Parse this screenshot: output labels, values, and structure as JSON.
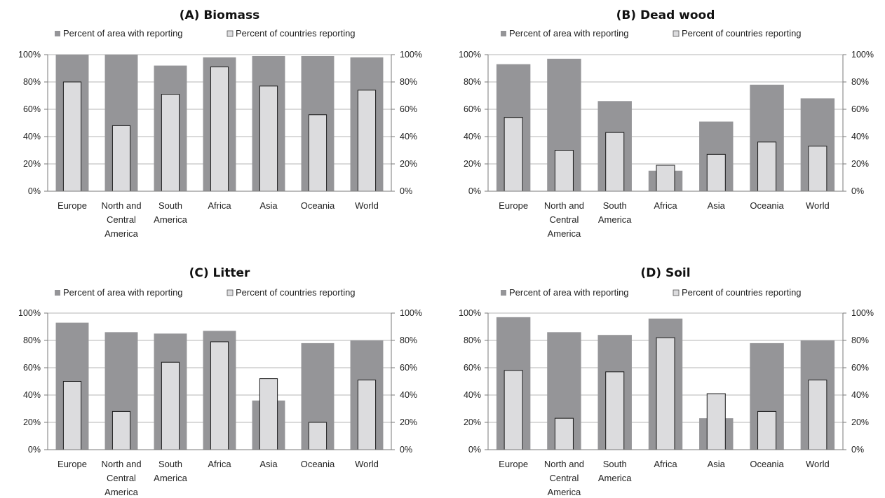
{
  "colors": {
    "area": "#959598",
    "countries": "#dcdcde",
    "countries_stroke": "#1a1a1a",
    "grid": "#b5b5b5",
    "axis": "#7a7a7a"
  },
  "chart_data": [
    {
      "type": "bar",
      "title": "(A) Biomass",
      "categories": [
        "Europe",
        "North and Central America",
        "South America",
        "Africa",
        "Asia",
        "Oceania",
        "World"
      ],
      "series": [
        {
          "name": "Percent of area with reporting",
          "values": [
            100,
            100,
            92,
            98,
            99,
            99,
            98
          ]
        },
        {
          "name": "Percent of countries reporting",
          "values": [
            80,
            48,
            71,
            91,
            77,
            56,
            74
          ]
        }
      ],
      "ylim": [
        0,
        100
      ],
      "y_ticks": [
        "0%",
        "20%",
        "40%",
        "60%",
        "80%",
        "100%"
      ],
      "y2_ticks": [
        "0%",
        "20%",
        "40%",
        "60%",
        "80%",
        "100%"
      ],
      "grid": true,
      "legend": "top"
    },
    {
      "type": "bar",
      "title": "(B) Dead wood",
      "categories": [
        "Europe",
        "North and Central America",
        "South America",
        "Africa",
        "Asia",
        "Oceania",
        "World"
      ],
      "series": [
        {
          "name": "Percent of area with reporting",
          "values": [
            93,
            97,
            66,
            15,
            51,
            78,
            68
          ]
        },
        {
          "name": "Percent of countries reporting",
          "values": [
            54,
            30,
            43,
            19,
            27,
            36,
            33
          ]
        }
      ],
      "ylim": [
        0,
        100
      ],
      "y_ticks": [
        "0%",
        "20%",
        "40%",
        "60%",
        "80%",
        "100%"
      ],
      "y2_ticks": [
        "0%",
        "20%",
        "40%",
        "60%",
        "80%",
        "100%"
      ],
      "grid": true,
      "legend": "top"
    },
    {
      "type": "bar",
      "title": "(C) Litter",
      "categories": [
        "Europe",
        "North and Central America",
        "South America",
        "Africa",
        "Asia",
        "Oceania",
        "World"
      ],
      "series": [
        {
          "name": "Percent of area with reporting",
          "values": [
            93,
            86,
            85,
            87,
            36,
            78,
            80
          ]
        },
        {
          "name": "Percent of countries reporting",
          "values": [
            50,
            28,
            64,
            79,
            52,
            20,
            51
          ]
        }
      ],
      "ylim": [
        0,
        100
      ],
      "y_ticks": [
        "0%",
        "20%",
        "40%",
        "60%",
        "80%",
        "100%"
      ],
      "y2_ticks": [
        "0%",
        "20%",
        "40%",
        "60%",
        "80%",
        "100%"
      ],
      "grid": true,
      "legend": "top"
    },
    {
      "type": "bar",
      "title": "(D) Soil",
      "categories": [
        "Europe",
        "North and Central America",
        "South America",
        "Africa",
        "Asia",
        "Oceania",
        "World"
      ],
      "series": [
        {
          "name": "Percent of area with reporting",
          "values": [
            97,
            86,
            84,
            96,
            23,
            78,
            80
          ]
        },
        {
          "name": "Percent of countries reporting",
          "values": [
            58,
            23,
            57,
            82,
            41,
            28,
            51
          ]
        }
      ],
      "ylim": [
        0,
        100
      ],
      "y_ticks": [
        "0%",
        "20%",
        "40%",
        "60%",
        "80%",
        "100%"
      ],
      "y2_ticks": [
        "0%",
        "20%",
        "40%",
        "60%",
        "80%",
        "100%"
      ],
      "grid": true,
      "legend": "top"
    }
  ]
}
